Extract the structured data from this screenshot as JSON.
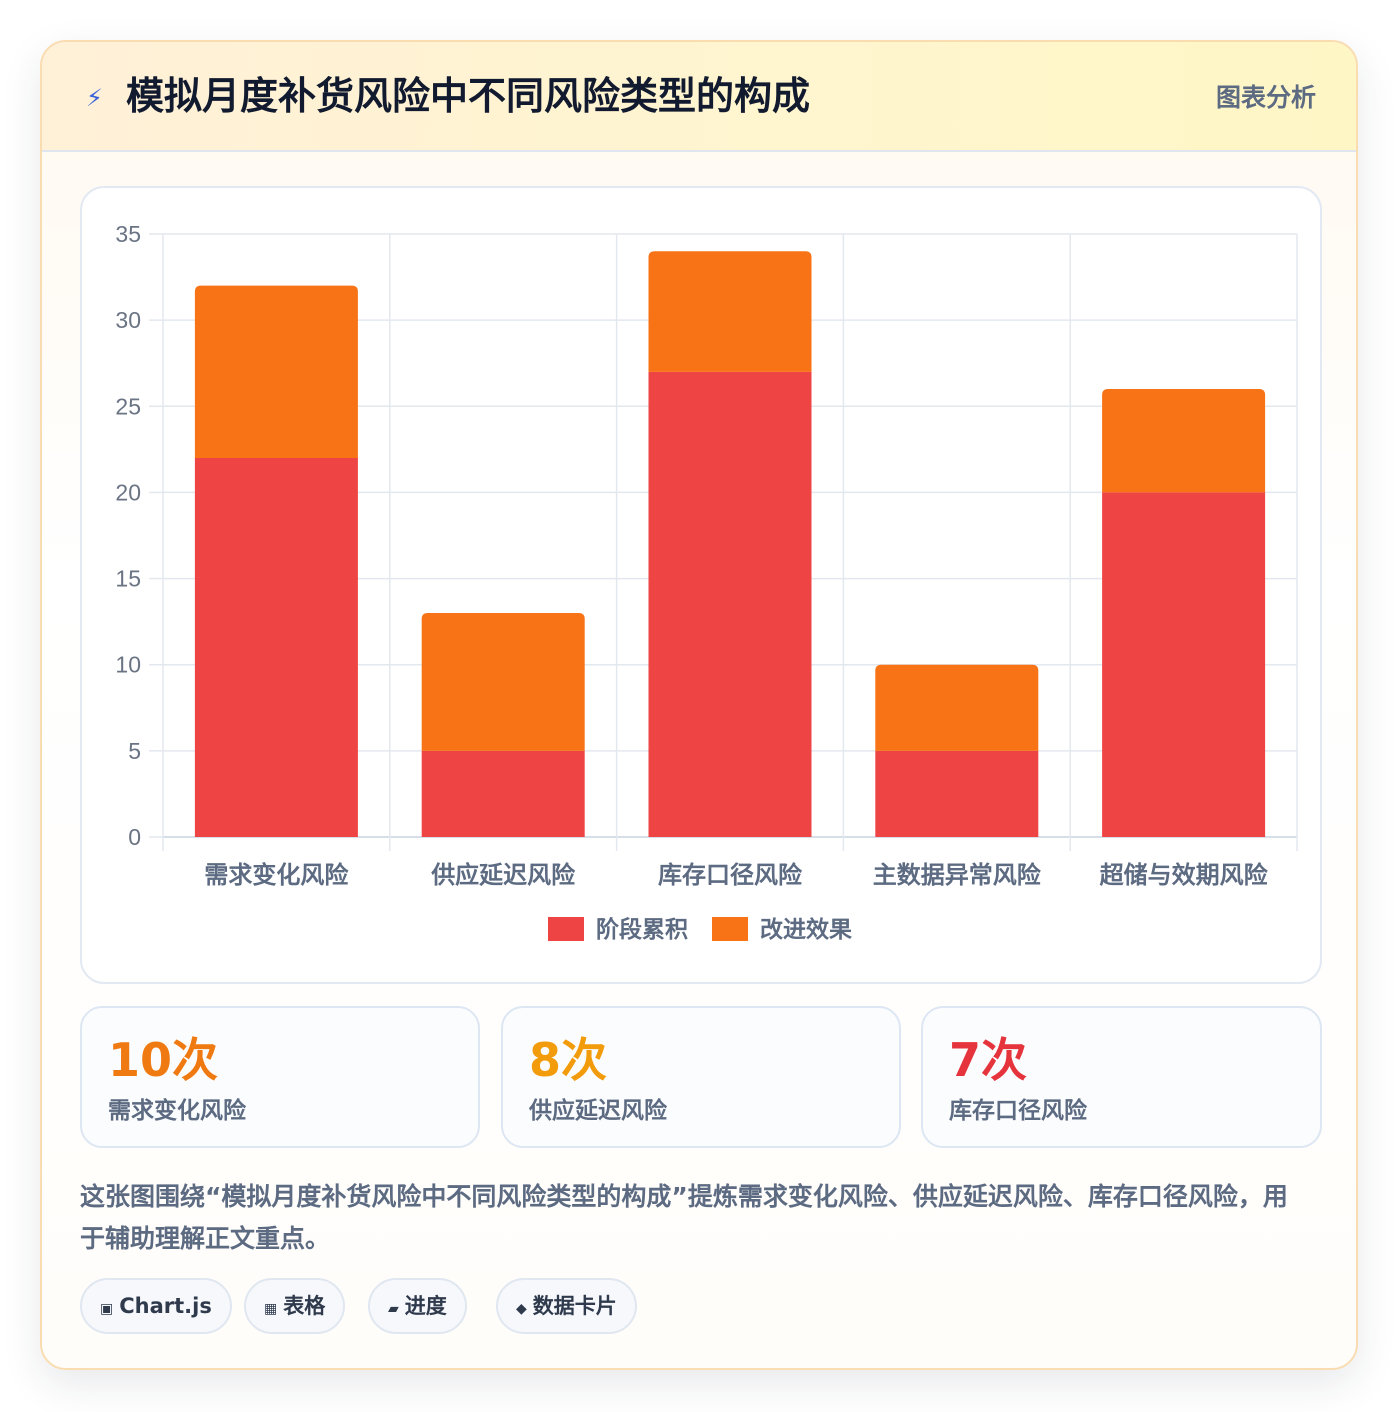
{
  "header": {
    "title": "模拟月度补货风险中不同风险类型的构成",
    "tag": "图表分析",
    "icon": "lightning-icon"
  },
  "chart_data": {
    "type": "bar",
    "stacked": true,
    "categories": [
      "需求变化风险",
      "供应延迟风险",
      "库存口径风险",
      "主数据异常风险",
      "超储与效期风险"
    ],
    "series": [
      {
        "name": "阶段累积",
        "values": [
          22,
          5,
          27,
          5,
          20
        ],
        "color": "#ef4444"
      },
      {
        "name": "改进效果",
        "values": [
          10,
          8,
          7,
          5,
          6
        ],
        "color": "#f77316"
      }
    ],
    "ylim": [
      0,
      35
    ],
    "yticks": [
      0,
      5,
      10,
      15,
      20,
      25,
      30,
      35
    ],
    "grid": true,
    "legend": "bottom",
    "title": "",
    "xlabel": "",
    "ylabel": ""
  },
  "stats": [
    {
      "value": "10次",
      "label": "需求变化风险",
      "color": "#f07a12"
    },
    {
      "value": "8次",
      "label": "供应延迟风险",
      "color": "#f29c0c"
    },
    {
      "value": "7次",
      "label": "库存口径风险",
      "color": "#e5343b"
    }
  ],
  "summary": "这张图围绕“模拟月度补货风险中不同风险类型的构成”提炼需求变化风险、供应延迟风险、库存口径风险，用于辅助理解正文重点。",
  "chips": [
    {
      "icon": "▣",
      "icon_name": "chart-icon",
      "label": "Chart.js"
    },
    {
      "icon": "▦",
      "icon_name": "table-icon",
      "label": "表格"
    },
    {
      "icon": "▰",
      "icon_name": "progress-icon",
      "label": "进度"
    },
    {
      "icon": "◆",
      "icon_name": "card-icon",
      "label": "数据卡片"
    }
  ]
}
